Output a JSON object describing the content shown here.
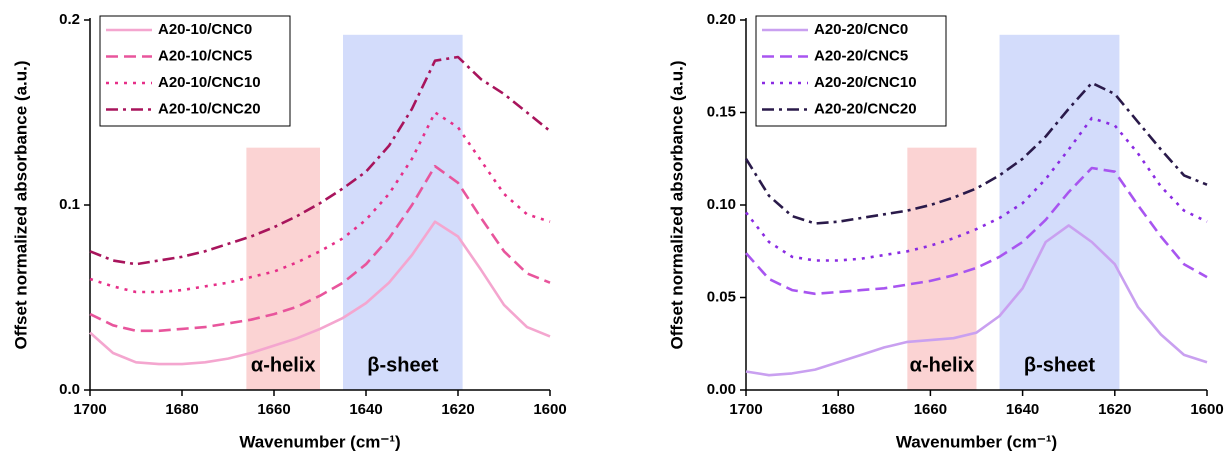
{
  "chart_data": [
    {
      "type": "line",
      "ylabel": "Offset normalized absorbance (a.u.)",
      "xlabel": "Wavenumber (cm⁻¹)",
      "xlim": [
        1700,
        1600
      ],
      "xticks": [
        1700,
        1680,
        1660,
        1640,
        1620,
        1600
      ],
      "ylim": [
        0,
        0.2
      ],
      "yticks": [
        {
          "value": 0,
          "label": "0.0"
        },
        {
          "value": 0.1,
          "label": "0.1"
        },
        {
          "value": 0.2,
          "label": "0.2"
        }
      ],
      "legend": "upper-left",
      "regions": [
        {
          "label": "α-helix",
          "xrange": [
            1666,
            1650
          ],
          "ytop": 0.131,
          "color": "#fbd3d3",
          "label_color": "#f03a3a"
        },
        {
          "label": "β-sheet",
          "xrange": [
            1645,
            1619
          ],
          "ytop": 0.192,
          "color": "#d3dcfb",
          "label_color": "#4a55e8"
        }
      ],
      "x": [
        1700,
        1695,
        1690,
        1685,
        1680,
        1675,
        1670,
        1665,
        1660,
        1655,
        1650,
        1645,
        1640,
        1635,
        1630,
        1625,
        1620,
        1615,
        1610,
        1605,
        1600
      ],
      "series": [
        {
          "name": "A20-10/CNC0",
          "color": "#f4a6cf",
          "dash": "solid",
          "values": [
            0.031,
            0.02,
            0.015,
            0.014,
            0.014,
            0.015,
            0.017,
            0.02,
            0.024,
            0.028,
            0.033,
            0.039,
            0.047,
            0.058,
            0.073,
            0.091,
            0.083,
            0.065,
            0.046,
            0.034,
            0.029
          ]
        },
        {
          "name": "A20-10/CNC5",
          "color": "#e8559c",
          "dash": "dashed",
          "values": [
            0.041,
            0.035,
            0.032,
            0.032,
            0.033,
            0.034,
            0.036,
            0.038,
            0.041,
            0.045,
            0.051,
            0.058,
            0.068,
            0.082,
            0.1,
            0.121,
            0.112,
            0.093,
            0.075,
            0.063,
            0.058
          ]
        },
        {
          "name": "A20-10/CNC10",
          "color": "#e62e88",
          "dash": "dotted",
          "values": [
            0.06,
            0.056,
            0.053,
            0.053,
            0.054,
            0.056,
            0.058,
            0.061,
            0.064,
            0.069,
            0.075,
            0.082,
            0.092,
            0.106,
            0.125,
            0.15,
            0.142,
            0.124,
            0.106,
            0.095,
            0.091
          ]
        },
        {
          "name": "A20-10/CNC20",
          "color": "#a8145c",
          "dash": "dashdot",
          "values": [
            0.075,
            0.07,
            0.068,
            0.07,
            0.072,
            0.075,
            0.079,
            0.083,
            0.088,
            0.094,
            0.101,
            0.109,
            0.118,
            0.132,
            0.152,
            0.178,
            0.18,
            0.168,
            0.16,
            0.15,
            0.14
          ]
        }
      ]
    },
    {
      "type": "line",
      "ylabel": "Offset normalized absorbance (a.u.)",
      "xlabel": "Wavenumber (cm⁻¹)",
      "xlim": [
        1700,
        1600
      ],
      "xticks": [
        1700,
        1680,
        1660,
        1640,
        1620,
        1600
      ],
      "ylim": [
        0,
        0.2
      ],
      "yticks": [
        {
          "value": 0,
          "label": "0.00"
        },
        {
          "value": 0.05,
          "label": "0.05"
        },
        {
          "value": 0.1,
          "label": "0.10"
        },
        {
          "value": 0.15,
          "label": "0.15"
        },
        {
          "value": 0.2,
          "label": "0.20"
        }
      ],
      "legend": "upper-left",
      "regions": [
        {
          "label": "α-helix",
          "xrange": [
            1665,
            1650
          ],
          "ytop": 0.131,
          "color": "#fbd3d3",
          "label_color": "#f03a3a"
        },
        {
          "label": "β-sheet",
          "xrange": [
            1645,
            1619
          ],
          "ytop": 0.192,
          "color": "#d3dcfb",
          "label_color": "#4a55e8"
        }
      ],
      "x": [
        1700,
        1695,
        1690,
        1685,
        1680,
        1675,
        1670,
        1665,
        1660,
        1655,
        1650,
        1645,
        1640,
        1635,
        1630,
        1625,
        1620,
        1615,
        1610,
        1605,
        1600
      ],
      "series": [
        {
          "name": "A20-20/CNC0",
          "color": "#c9a0f0",
          "dash": "solid",
          "values": [
            0.01,
            0.008,
            0.009,
            0.011,
            0.015,
            0.019,
            0.023,
            0.026,
            0.027,
            0.028,
            0.031,
            0.04,
            0.055,
            0.08,
            0.089,
            0.08,
            0.068,
            0.045,
            0.03,
            0.019,
            0.015
          ]
        },
        {
          "name": "A20-20/CNC5",
          "color": "#a855f0",
          "dash": "dashed",
          "values": [
            0.074,
            0.06,
            0.054,
            0.052,
            0.053,
            0.054,
            0.055,
            0.057,
            0.059,
            0.062,
            0.066,
            0.072,
            0.08,
            0.092,
            0.107,
            0.12,
            0.118,
            0.1,
            0.083,
            0.068,
            0.061
          ]
        },
        {
          "name": "A20-20/CNC10",
          "color": "#8a2be2",
          "dash": "dotted",
          "values": [
            0.096,
            0.08,
            0.072,
            0.07,
            0.07,
            0.071,
            0.073,
            0.075,
            0.078,
            0.082,
            0.087,
            0.093,
            0.101,
            0.114,
            0.13,
            0.147,
            0.143,
            0.128,
            0.11,
            0.097,
            0.091
          ]
        },
        {
          "name": "A20-20/CNC20",
          "color": "#2a1a4a",
          "dash": "dashdot",
          "values": [
            0.125,
            0.105,
            0.094,
            0.09,
            0.091,
            0.093,
            0.095,
            0.097,
            0.1,
            0.104,
            0.109,
            0.116,
            0.125,
            0.137,
            0.152,
            0.166,
            0.16,
            0.145,
            0.13,
            0.116,
            0.111
          ]
        }
      ]
    }
  ]
}
